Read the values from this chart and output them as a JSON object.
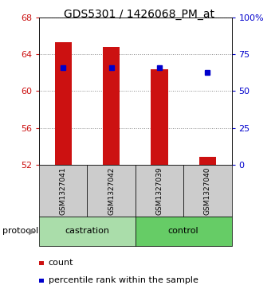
{
  "title": "GDS5301 / 1426068_PM_at",
  "samples": [
    "GSM1327041",
    "GSM1327042",
    "GSM1327039",
    "GSM1327040"
  ],
  "bar_bottoms": [
    52.0,
    52.0,
    52.0,
    52.0
  ],
  "bar_tops": [
    65.3,
    64.8,
    62.35,
    52.85
  ],
  "bar_color": "#cc1111",
  "percentile_values": [
    62.5,
    62.5,
    62.5,
    62.0
  ],
  "percentile_color": "#0000cc",
  "ylim_left": [
    52,
    68
  ],
  "ylim_right": [
    0,
    100
  ],
  "yticks_left": [
    52,
    56,
    60,
    64,
    68
  ],
  "yticks_right": [
    0,
    25,
    50,
    75,
    100
  ],
  "ytick_labels_right": [
    "0",
    "25",
    "50",
    "75",
    "100%"
  ],
  "groups": [
    {
      "label": "castration",
      "indices": [
        0,
        1
      ],
      "color": "#aaddaa"
    },
    {
      "label": "control",
      "indices": [
        2,
        3
      ],
      "color": "#66cc66"
    }
  ],
  "protocol_label": "protocol",
  "legend_count_label": "count",
  "legend_pct_label": "percentile rank within the sample",
  "bar_width": 0.35,
  "grid_color": "#888888",
  "left_tick_color": "#cc1111",
  "right_tick_color": "#0000cc",
  "bg_plot": "#ffffff",
  "bg_sample": "#cccccc",
  "title_fontsize": 10,
  "tick_fontsize": 8,
  "sample_fontsize": 6.5,
  "group_fontsize": 8,
  "legend_fontsize": 8
}
